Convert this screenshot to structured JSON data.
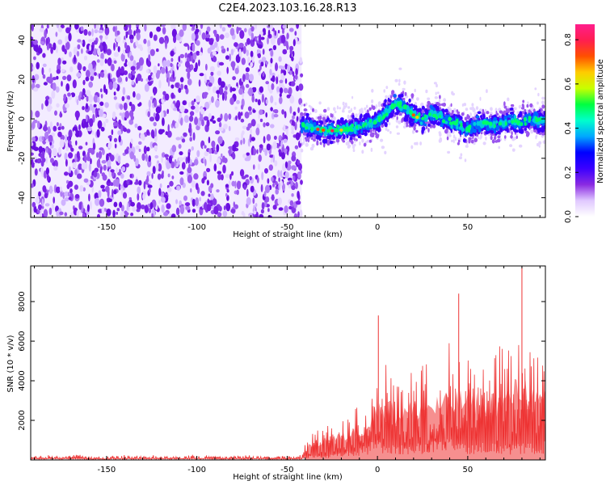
{
  "title": "C2E4.2023.103.16.28.R13",
  "chart_data": [
    {
      "type": "heatmap",
      "xlabel": "Height of straight line (km)",
      "ylabel": "Frequency (Hz)",
      "xlim": [
        -192,
        93
      ],
      "ylim": [
        -50,
        48
      ],
      "xticks": [
        -150,
        -100,
        -50,
        0,
        50
      ],
      "yticks": [
        -40,
        -20,
        0,
        20,
        40
      ],
      "noise_region_x": [
        -192,
        -42
      ],
      "signal_ridge": {
        "x": [
          -42,
          -35,
          -28,
          -22,
          -15,
          -10,
          -5,
          0,
          5,
          10,
          15,
          20,
          25,
          30,
          35,
          40,
          45,
          50,
          55,
          60,
          65,
          70,
          75,
          80,
          85,
          90,
          93
        ],
        "freq": [
          -3,
          -5,
          -6,
          -6,
          -5,
          -4,
          -3,
          -1,
          3,
          8,
          6,
          2,
          -1,
          3,
          1,
          -1,
          -3,
          -5,
          -3,
          -2,
          -3,
          -2,
          -1,
          -2,
          0,
          -1,
          -2
        ]
      },
      "colorbar": {
        "label": "Normalized spectral amplitude",
        "range": [
          0,
          0.87
        ],
        "ticks": [
          "0.0",
          "0.2",
          "0.4",
          "0.6",
          "0.8"
        ],
        "colors": [
          "#ffffff",
          "#e0c8ff",
          "#8a2be2",
          "#3b00ff",
          "#0000ff",
          "#00a8ff",
          "#00ffcc",
          "#00ff40",
          "#c8ff00",
          "#ffcc00",
          "#ff5000",
          "#ff1e50",
          "#ff1e8c"
        ]
      },
      "grid": false
    },
    {
      "type": "line",
      "xlabel": "Height of straight line (km)",
      "ylabel": "SNR (10 * v/v)",
      "xlim": [
        -192,
        93
      ],
      "ylim": [
        0,
        9800
      ],
      "xticks": [
        -150,
        -100,
        -50,
        0,
        50
      ],
      "yticks": [
        2000,
        4000,
        6000,
        8000
      ],
      "color": "#ee3333",
      "envelope": {
        "x": [
          -192,
          -150,
          -100,
          -50,
          -42,
          -38,
          -30,
          -20,
          -10,
          -5,
          0,
          5,
          10,
          20,
          30,
          40,
          50,
          60,
          70,
          80,
          90,
          93
        ],
        "upper": [
          250,
          280,
          260,
          250,
          300,
          1500,
          2200,
          2600,
          3200,
          4000,
          5400,
          5800,
          5200,
          5600,
          6000,
          6300,
          6800,
          6000,
          6500,
          8300,
          6200,
          6800
        ],
        "lower": [
          60,
          50,
          60,
          50,
          60,
          200,
          200,
          300,
          500,
          700,
          900,
          700,
          600,
          700,
          800,
          900,
          700,
          800,
          600,
          700,
          700,
          800
        ]
      },
      "peaks": [
        {
          "x": 0.5,
          "y": 7300
        },
        {
          "x": 45,
          "y": 8400
        },
        {
          "x": 80,
          "y": 9800
        }
      ],
      "grid": false
    }
  ]
}
